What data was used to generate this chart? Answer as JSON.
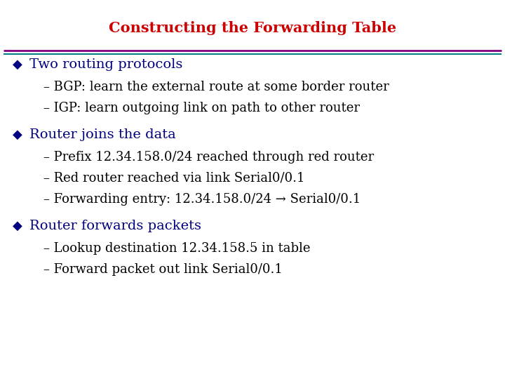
{
  "title": "Constructing the Forwarding Table",
  "title_color": "#CC0000",
  "title_fontsize": 15,
  "background_color": "#FFFFFF",
  "bullet_color": "#000080",
  "bullet_symbol": "◆",
  "bullet_fontsize": 14,
  "sub_fontsize": 13,
  "sub_color": "#000000",
  "separator_color1": "#800080",
  "separator_color2": "#008080",
  "items": [
    {
      "bullet": "Two routing protocols",
      "subs": [
        "– BGP: learn the external route at some border router",
        "– IGP: learn outgoing link on path to other router"
      ]
    },
    {
      "bullet": "Router joins the data",
      "subs": [
        "– Prefix 12.34.158.0/24 reached through red router",
        "– Red router reached via link Serial0/0.1",
        "– Forwarding entry: 12.34.158.0/24 → Serial0/0.1"
      ]
    },
    {
      "bullet": "Router forwards packets",
      "subs": [
        "– Lookup destination 12.34.158.5 in table",
        "– Forward packet out link Serial0/0.1"
      ]
    }
  ]
}
